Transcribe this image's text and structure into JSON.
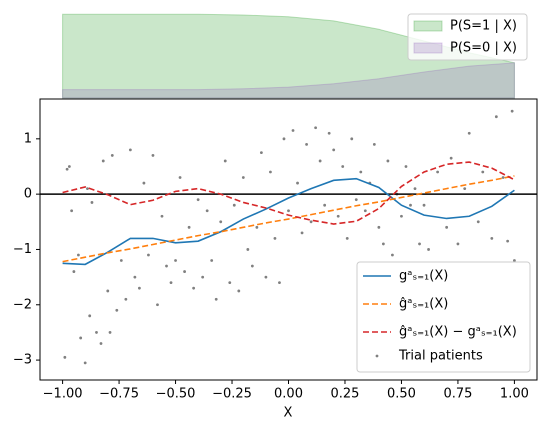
{
  "chart_data": [
    {
      "type": "area",
      "x": [
        -1.0,
        -0.8,
        -0.6,
        -0.4,
        -0.2,
        0.0,
        0.2,
        0.4,
        0.6,
        0.8,
        1.0
      ],
      "series": [
        {
          "name": "P(S=1 | X)",
          "color": "#2ca02c",
          "values": [
            1.0,
            1.0,
            1.0,
            1.0,
            0.99,
            0.97,
            0.92,
            0.82,
            0.68,
            0.54,
            0.42
          ]
        },
        {
          "name": "P(S=0 | X)",
          "color": "#9467bd",
          "values": [
            0.1,
            0.1,
            0.1,
            0.1,
            0.11,
            0.13,
            0.17,
            0.23,
            0.31,
            0.38,
            0.42
          ]
        }
      ],
      "xlim": [
        -1.1,
        1.1
      ],
      "ylim": [
        0,
        1.05
      ],
      "legend": "upper right"
    },
    {
      "type": "line",
      "xlabel": "X",
      "x": [
        -1.0,
        -0.9,
        -0.8,
        -0.7,
        -0.6,
        -0.5,
        -0.4,
        -0.3,
        -0.2,
        -0.1,
        0.0,
        0.1,
        0.2,
        0.3,
        0.4,
        0.5,
        0.6,
        0.7,
        0.8,
        0.9,
        1.0
      ],
      "series": [
        {
          "name": "gᵃₛ₌₁(X)",
          "color": "#1f77b4",
          "dash": false,
          "values": [
            -1.25,
            -1.27,
            -1.05,
            -0.8,
            -0.8,
            -0.88,
            -0.85,
            -0.68,
            -0.45,
            -0.27,
            -0.07,
            0.1,
            0.25,
            0.28,
            0.12,
            -0.2,
            -0.38,
            -0.44,
            -0.4,
            -0.22,
            0.07
          ]
        },
        {
          "name": "ĝᵃₛ₌₁(X)",
          "color": "#ff7f0e",
          "dash": true,
          "values": [
            -1.22,
            -1.14,
            -1.06,
            -0.99,
            -0.91,
            -0.83,
            -0.75,
            -0.68,
            -0.6,
            -0.52,
            -0.45,
            -0.37,
            -0.29,
            -0.21,
            -0.14,
            -0.06,
            0.02,
            0.1,
            0.18,
            0.25,
            0.33
          ]
        },
        {
          "name": "ĝᵃₛ₌₁(X) − gᵃₛ₌₁(X)",
          "color": "#d62728",
          "dash": true,
          "values": [
            0.03,
            0.13,
            -0.01,
            -0.19,
            -0.11,
            0.05,
            0.1,
            0.0,
            -0.15,
            -0.25,
            -0.38,
            -0.47,
            -0.54,
            -0.49,
            -0.26,
            0.14,
            0.4,
            0.54,
            0.58,
            0.47,
            0.26
          ]
        }
      ],
      "scatter": {
        "name": "Trial patients",
        "color": "#808080",
        "x": [
          -0.99,
          -0.98,
          -0.97,
          -0.96,
          -0.95,
          -0.93,
          -0.92,
          -0.9,
          -0.89,
          -0.88,
          -0.87,
          -0.85,
          -0.83,
          -0.82,
          -0.8,
          -0.79,
          -0.78,
          -0.76,
          -0.74,
          -0.72,
          -0.7,
          -0.68,
          -0.66,
          -0.64,
          -0.62,
          -0.6,
          -0.58,
          -0.56,
          -0.54,
          -0.52,
          -0.5,
          -0.48,
          -0.46,
          -0.44,
          -0.42,
          -0.4,
          -0.38,
          -0.36,
          -0.34,
          -0.32,
          -0.3,
          -0.28,
          -0.26,
          -0.24,
          -0.22,
          -0.2,
          -0.18,
          -0.16,
          -0.14,
          -0.12,
          -0.1,
          -0.08,
          -0.06,
          -0.04,
          -0.02,
          0.0,
          0.02,
          0.04,
          0.06,
          0.08,
          0.1,
          0.12,
          0.14,
          0.16,
          0.18,
          0.2,
          0.22,
          0.24,
          0.26,
          0.28,
          0.3,
          0.32,
          0.34,
          0.36,
          0.38,
          0.4,
          0.42,
          0.44,
          0.46,
          0.48,
          0.5,
          0.52,
          0.54,
          0.56,
          0.58,
          0.6,
          0.62,
          0.66,
          0.7,
          0.72,
          0.75,
          0.78,
          0.8,
          0.84,
          0.86,
          0.9,
          0.92,
          0.95,
          0.97,
          0.99,
          1.0
        ],
        "values": [
          -2.95,
          0.45,
          0.5,
          -0.3,
          -1.4,
          -1.1,
          -2.6,
          -3.05,
          0.1,
          -2.2,
          -0.15,
          -2.5,
          -2.7,
          0.6,
          -1.75,
          -2.5,
          0.7,
          -2.1,
          -1.2,
          -1.9,
          0.8,
          -1.5,
          -1.7,
          0.2,
          -1.1,
          0.7,
          -2.0,
          -0.4,
          -1.3,
          -1.6,
          -1.2,
          0.3,
          -1.4,
          -0.6,
          -1.7,
          -0.1,
          -1.5,
          -0.3,
          -1.2,
          -1.9,
          -0.5,
          0.6,
          -1.6,
          -0.2,
          -1.75,
          0.3,
          -1.0,
          -1.3,
          -0.6,
          0.75,
          -1.5,
          0.4,
          -0.8,
          -1.6,
          1.0,
          -0.3,
          1.15,
          0.2,
          -0.7,
          0.9,
          -0.5,
          1.2,
          0.6,
          -0.2,
          1.1,
          0.8,
          -0.4,
          0.5,
          -0.8,
          1.0,
          -0.1,
          0.4,
          -0.3,
          0.2,
          0.9,
          -0.6,
          -0.9,
          0.6,
          -1.1,
          0.0,
          -0.4,
          0.5,
          -0.2,
          0.1,
          -0.9,
          -0.2,
          -1.0,
          0.4,
          -0.6,
          0.65,
          -0.9,
          0.1,
          1.1,
          -0.5,
          0.4,
          -0.8,
          1.4,
          0.3,
          -0.85,
          1.5,
          -1.2
        ]
      },
      "hline": 0,
      "xlim": [
        -1.1,
        1.1
      ],
      "ylim": [
        -3.36,
        1.72
      ],
      "xticks": [
        {
          "value": -1,
          "label": "−1.00"
        },
        {
          "value": -0.75,
          "label": "−0.75"
        },
        {
          "value": -0.5,
          "label": "−0.50"
        },
        {
          "value": -0.25,
          "label": "−0.25"
        },
        {
          "value": 0,
          "label": "0.00"
        },
        {
          "value": 0.25,
          "label": "0.25"
        },
        {
          "value": 0.5,
          "label": "0.50"
        },
        {
          "value": 0.75,
          "label": "0.75"
        },
        {
          "value": 1,
          "label": "1.00"
        }
      ],
      "yticks": [
        {
          "value": -3,
          "label": "−3"
        },
        {
          "value": -2,
          "label": "−2"
        },
        {
          "value": -1,
          "label": "−1"
        },
        0,
        1
      ],
      "legend": "lower right"
    }
  ]
}
